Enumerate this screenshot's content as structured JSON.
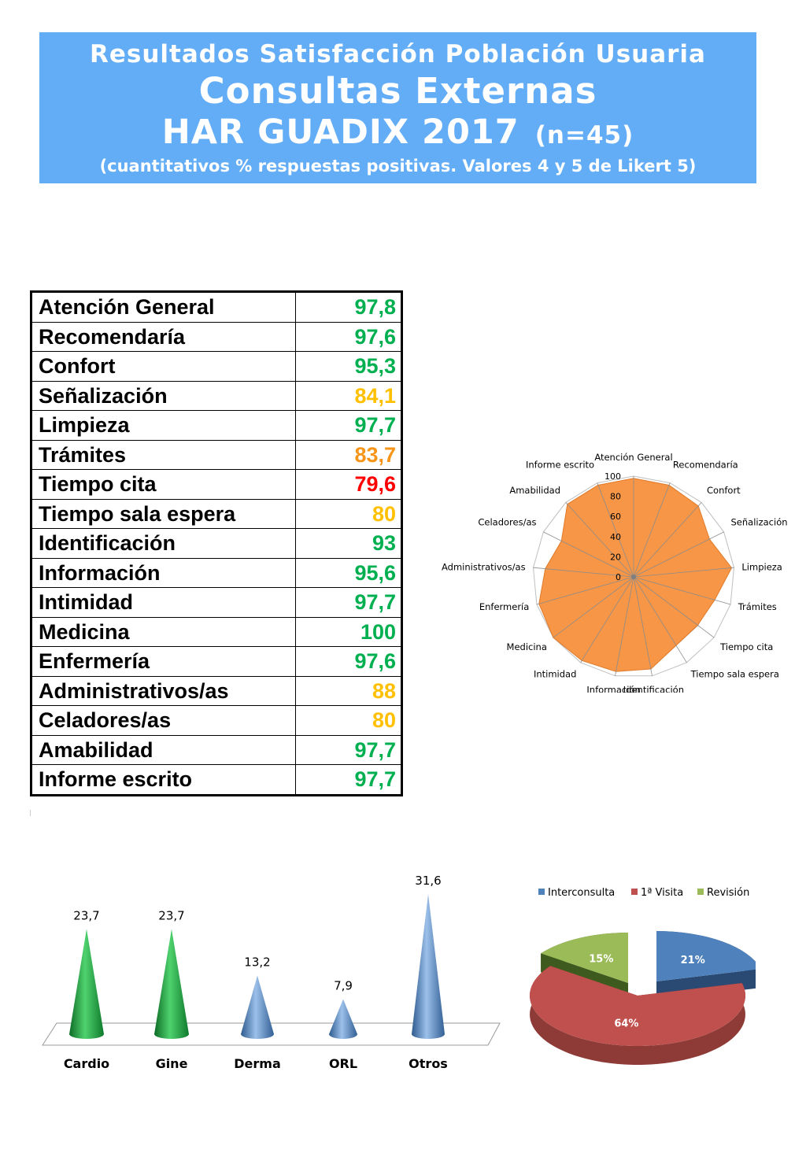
{
  "header": {
    "line1": "Resultados Satisfacción Población Usuaria",
    "line2": "Consultas Externas",
    "line3": "HAR GUADIX 2017",
    "line3_n": "(n=45)",
    "line4": "(cuantitativos % respuestas positivas. Valores 4 y 5 de Likert 5)"
  },
  "colors": {
    "header_bg": "#63adf7",
    "green": "#00b050",
    "yellow": "#ffc000",
    "orange": "#f79518",
    "red": "#ff0000",
    "radar_fill": "#f79646",
    "cone_green": "#1e9a3c",
    "cone_blue": "#4f81bd",
    "pie_blue": "#4f81bd",
    "pie_red": "#c0504d",
    "pie_green": "#9bbb59"
  },
  "table": {
    "rows": [
      {
        "label": "Atención General",
        "value": "97,8",
        "color": "#00b050"
      },
      {
        "label": "Recomendaría",
        "value": "97,6",
        "color": "#00b050"
      },
      {
        "label": "Confort",
        "value": "95,3",
        "color": "#00b050"
      },
      {
        "label": "Señalización",
        "value": "84,1",
        "color": "#ffc000"
      },
      {
        "label": "Limpieza",
        "value": "97,7",
        "color": "#00b050"
      },
      {
        "label": "Trámites",
        "value": "83,7",
        "color": "#f79518"
      },
      {
        "label": "Tiempo cita",
        "value": "79,6",
        "color": "#ff0000"
      },
      {
        "label": "Tiempo sala espera",
        "value": "80",
        "color": "#ffc000"
      },
      {
        "label": "Identificación",
        "value": "93",
        "color": "#00b050"
      },
      {
        "label": "Información",
        "value": "95,6",
        "color": "#00b050"
      },
      {
        "label": "Intimidad",
        "value": "97,7",
        "color": "#00b050"
      },
      {
        "label": "Medicina",
        "value": "100",
        "color": "#00b050"
      },
      {
        "label": "Enfermería",
        "value": "97,6",
        "color": "#00b050"
      },
      {
        "label": "Administrativos/as",
        "value": "88",
        "color": "#ffc000"
      },
      {
        "label": "Celadores/as",
        "value": "80",
        "color": "#ffc000"
      },
      {
        "label": "Amabilidad",
        "value": "97,7",
        "color": "#00b050"
      },
      {
        "label": "Informe escrito",
        "value": "97,7",
        "color": "#00b050"
      }
    ]
  },
  "chart_data": [
    {
      "type": "radar",
      "categories": [
        "Atención General",
        "Recomendaría",
        "Confort",
        "Señalización",
        "Limpieza",
        "Trámites",
        "Tiempo cita",
        "Tiempo sala espera",
        "Identificación",
        "Información",
        "Intimidad",
        "Medicina",
        "Enfermería",
        "Administrativos/as",
        "Celadores/as",
        "Amabilidad",
        "Informe escrito"
      ],
      "values": [
        97.8,
        97.6,
        95.3,
        84.1,
        97.7,
        83.7,
        79.6,
        80,
        93,
        95.6,
        97.7,
        100,
        97.6,
        88,
        80,
        97.7,
        97.7
      ],
      "rlim": [
        0,
        100
      ],
      "ticks": [
        "0",
        "20",
        "40",
        "60",
        "80",
        "100"
      ]
    },
    {
      "type": "bar",
      "categories": [
        "Cardio",
        "Gine",
        "Derma",
        "ORL",
        "Otros"
      ],
      "values": [
        23.7,
        23.7,
        13.2,
        7.9,
        31.6
      ],
      "value_labels": [
        "23,7",
        "23,7",
        "13,2",
        "7,9",
        "31,6"
      ],
      "colors": [
        "#1e9a3c",
        "#1e9a3c",
        "#4f81bd",
        "#4f81bd",
        "#4f81bd"
      ]
    },
    {
      "type": "pie",
      "legend": [
        "Interconsulta",
        "1ª Visita",
        "Revisión"
      ],
      "values": [
        21,
        64,
        15
      ],
      "value_labels": [
        "21%",
        "64%",
        "15%"
      ],
      "colors": [
        "#4f81bd",
        "#c0504d",
        "#9bbb59"
      ],
      "legend_position": "top"
    }
  ]
}
